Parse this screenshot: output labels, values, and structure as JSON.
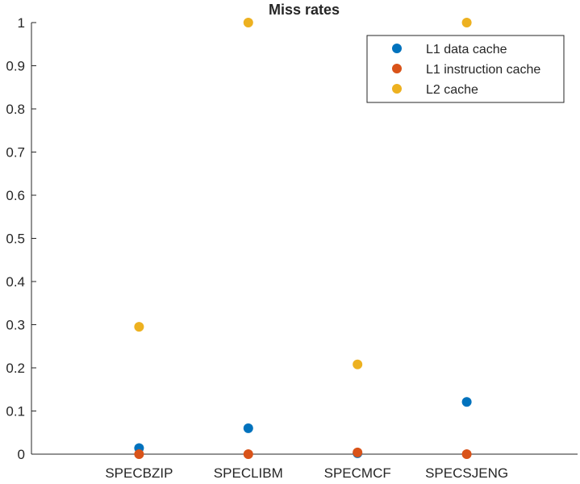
{
  "chart_data": {
    "type": "scatter",
    "title": "Miss rates",
    "xlabel": "",
    "ylabel": "",
    "categories": [
      "SPECBZIP",
      "SPECLIBM",
      "SPECMCF",
      "SPECSJENG"
    ],
    "ylim": [
      0,
      1
    ],
    "yticks": [
      "0",
      "0.1",
      "0.2",
      "0.3",
      "0.4",
      "0.5",
      "0.6",
      "0.7",
      "0.8",
      "0.9",
      "1"
    ],
    "grid": false,
    "legend_position": "top-right",
    "series": [
      {
        "name": "L1 data cache",
        "color": "#0072BD",
        "values": [
          0.014,
          0.06,
          0.002,
          0.121
        ]
      },
      {
        "name": "L1 instruction cache",
        "color": "#D95319",
        "values": [
          0.0,
          0.0,
          0.004,
          0.0
        ]
      },
      {
        "name": "L2 cache",
        "color": "#EDB120",
        "values": [
          0.295,
          1.0,
          0.208,
          1.0
        ]
      }
    ]
  }
}
